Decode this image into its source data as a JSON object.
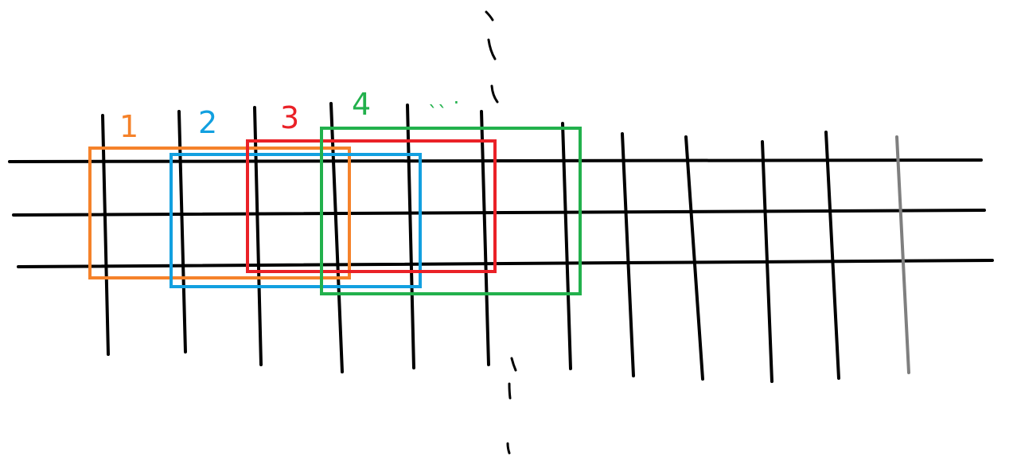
{
  "colors": {
    "orange": "#f5822a",
    "blue": "#12a0e0",
    "red": "#ea2127",
    "green": "#22b14c",
    "black": "#000000",
    "gray": "#7f7f7f"
  },
  "labels": {
    "box1": "1",
    "box2": "2",
    "box3": "3",
    "box4": "4",
    "ellipsis": "ˎˎ ."
  }
}
